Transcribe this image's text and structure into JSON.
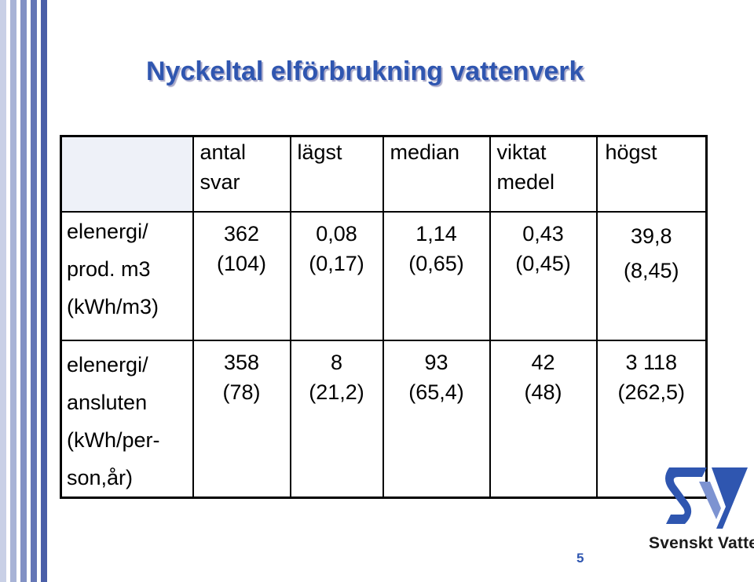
{
  "slide": {
    "title": "Nyckeltal elförbrukning vattenverk",
    "page_number": "5",
    "brand": "Svenskt Vatten"
  },
  "table": {
    "headers": [
      [
        "antal",
        "svar"
      ],
      [
        "lägst"
      ],
      [
        "median"
      ],
      [
        "viktat",
        "medel"
      ],
      [
        "högst"
      ]
    ],
    "rows": [
      {
        "label": [
          "elenergi/",
          "prod. m3",
          "(kWh/m3)"
        ],
        "cells": [
          [
            "362",
            "(104)"
          ],
          [
            "0,08",
            "(0,17)"
          ],
          [
            "1,14",
            "(0,65)"
          ],
          [
            "0,43",
            "(0,45)"
          ],
          [
            "39,8",
            "(8,45)"
          ]
        ]
      },
      {
        "label": [
          "elenergi/",
          "ansluten",
          "(kWh/per-",
          "son,år)"
        ],
        "cells": [
          [
            "358",
            "(78)"
          ],
          [
            "8",
            "(21,2)"
          ],
          [
            "93",
            "(65,4)"
          ],
          [
            "42",
            "(48)"
          ],
          [
            "3 118",
            "(262,5)"
          ]
        ]
      }
    ]
  },
  "colors": {
    "title": "#2f56b0",
    "stripe_colors": [
      "#c9d0e6",
      "#ffffff",
      "#a8b3d6",
      "#ffffff",
      "#8291c4",
      "#ffffff",
      "#6577b6",
      "#ffffff",
      "#4a5fa8"
    ],
    "logo_blue": "#2f56b0"
  }
}
